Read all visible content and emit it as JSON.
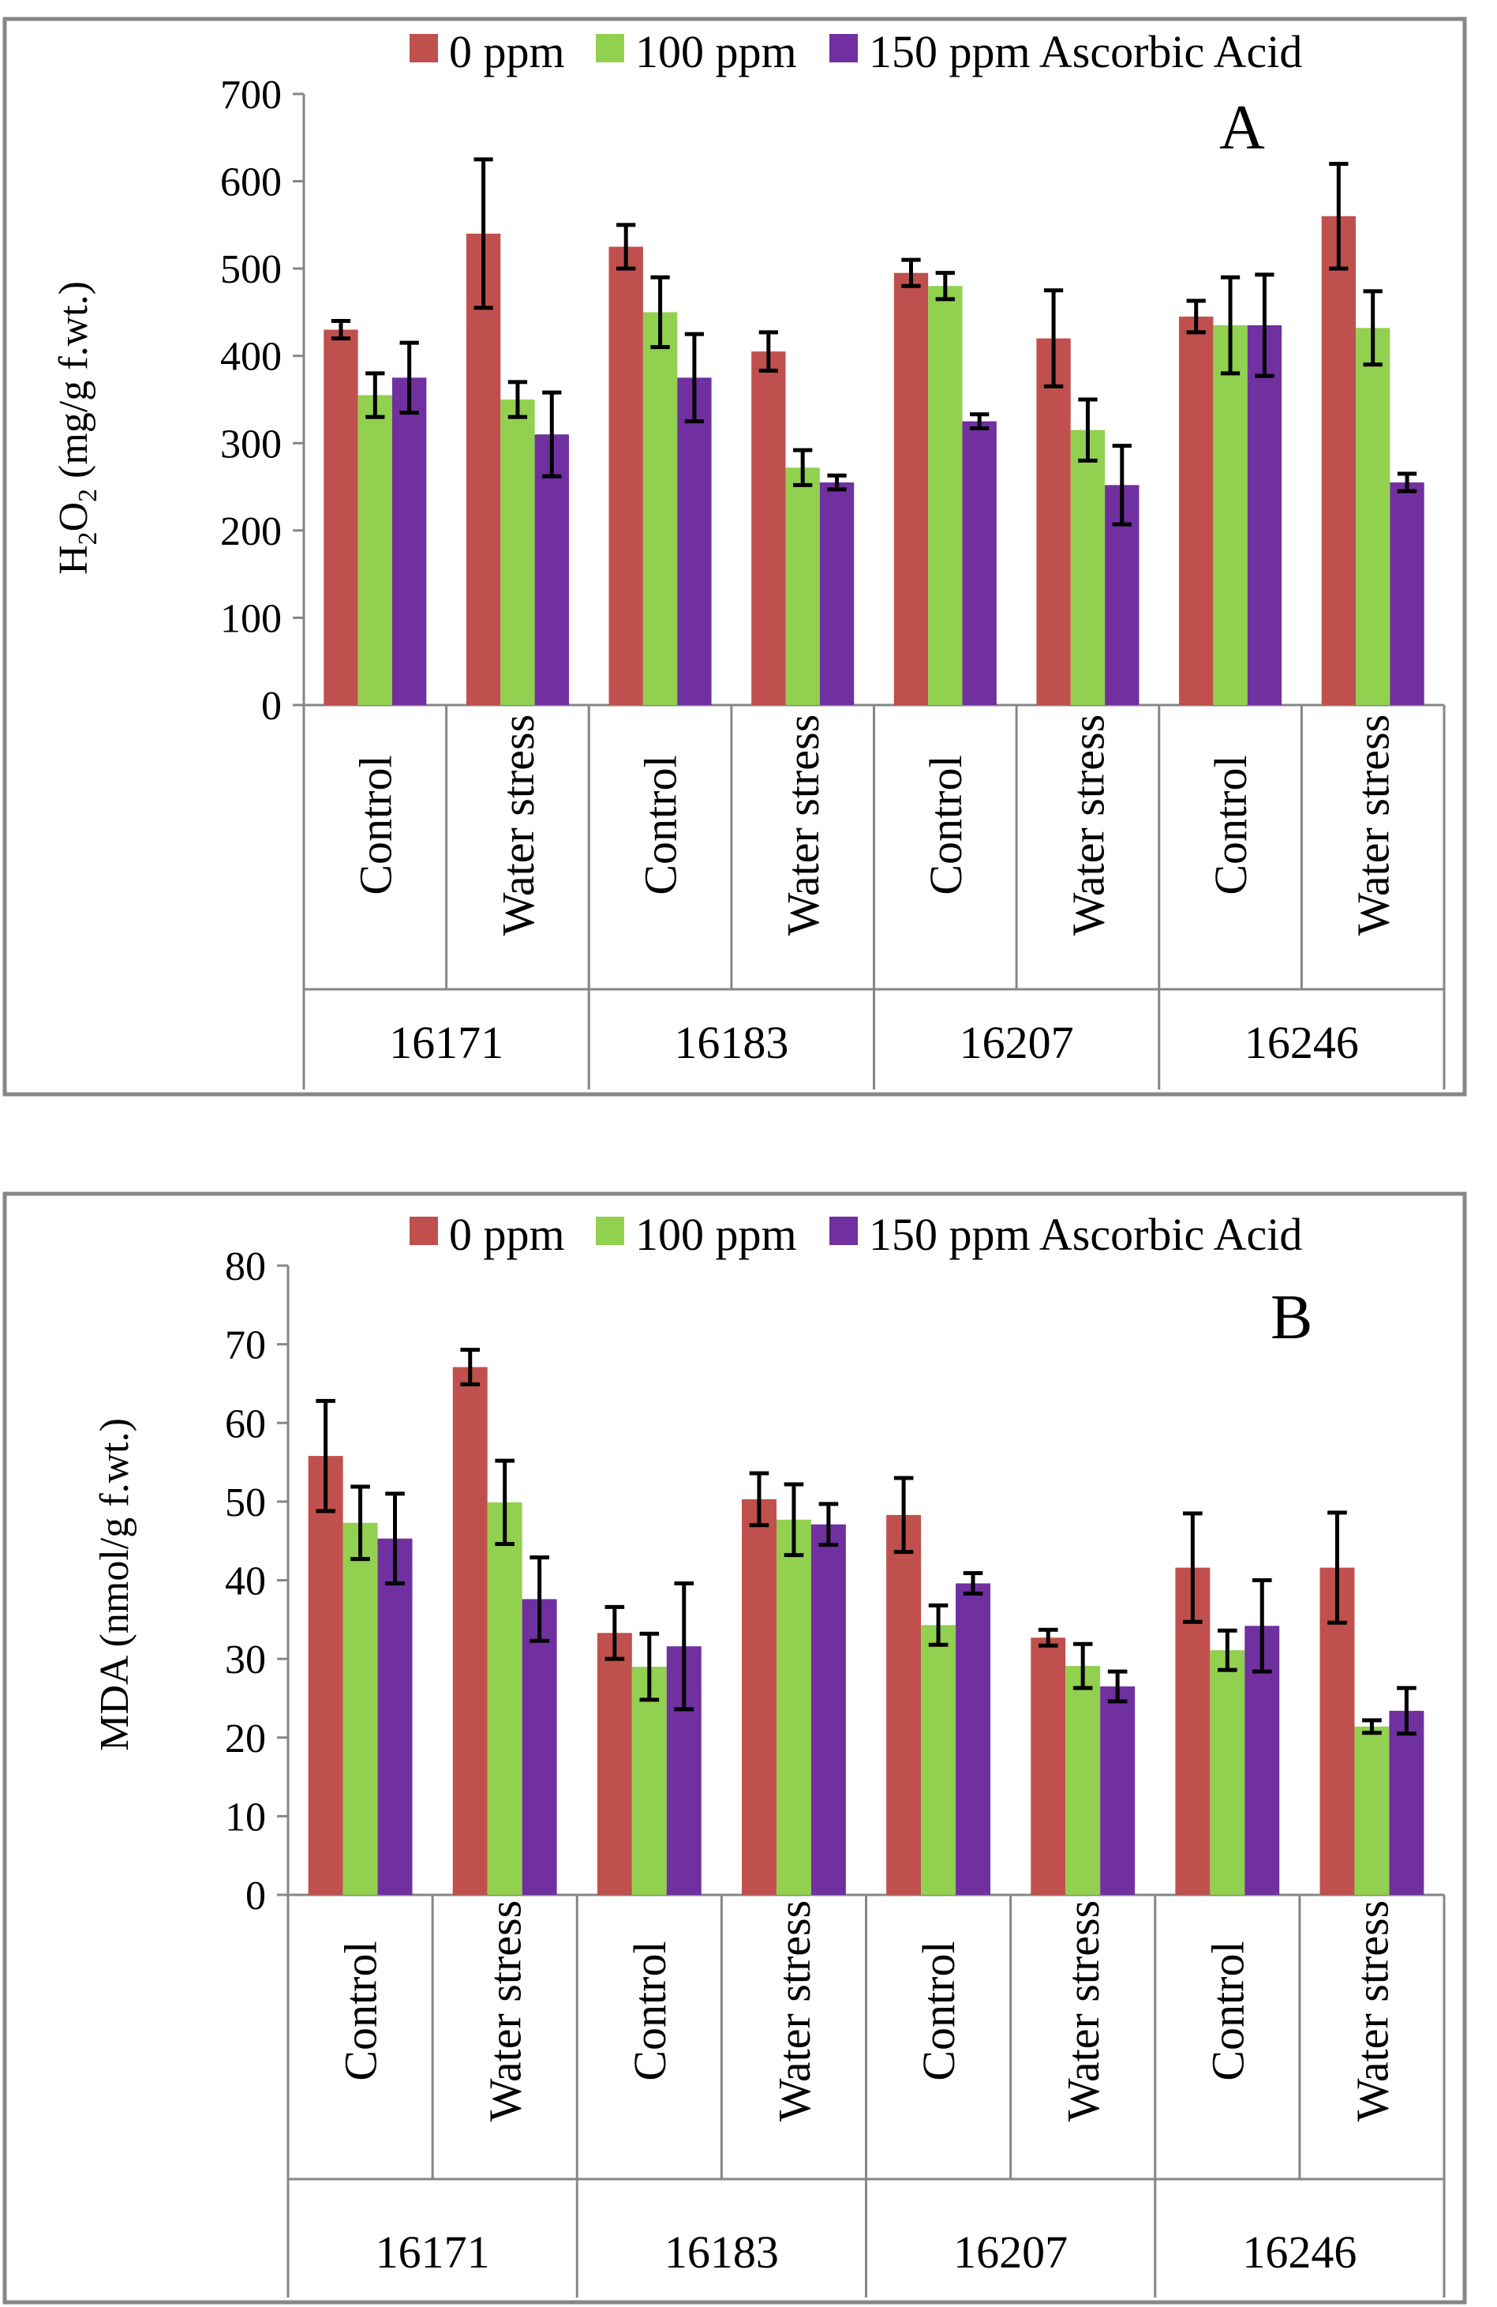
{
  "chart_data": [
    {
      "type": "bar",
      "panel_letter": "A",
      "ylabel_parts": [
        "H",
        "2",
        "O",
        "2",
        " (mg/g f.wt.)"
      ],
      "ylim": [
        0,
        700
      ],
      "yticks": [
        0,
        100,
        200,
        300,
        400,
        500,
        600,
        700
      ],
      "groups": [
        "16171",
        "16183",
        "16207",
        "16246"
      ],
      "subgroups": [
        "Control",
        "Water stress"
      ],
      "categories": [
        "16171 Control",
        "16171 Water stress",
        "16183 Control",
        "16183 Water stress",
        "16207 Control",
        "16207 Water stress",
        "16246 Control",
        "16246 Water stress"
      ],
      "legend_position": "top",
      "series": [
        {
          "name": "0 ppm",
          "color": "#c0504d",
          "values": [
            430,
            540,
            525,
            405,
            495,
            420,
            445,
            560
          ],
          "errors": [
            10,
            85,
            25,
            22,
            15,
            55,
            18,
            60
          ]
        },
        {
          "name": "100 ppm",
          "color": "#92d050",
          "values": [
            355,
            350,
            450,
            272,
            480,
            315,
            435,
            432
          ],
          "errors": [
            25,
            20,
            40,
            20,
            15,
            35,
            55,
            42
          ]
        },
        {
          "name": "150 ppm Ascorbic Acid",
          "color": "#7030a0",
          "values": [
            375,
            310,
            375,
            255,
            325,
            252,
            435,
            255
          ],
          "errors": [
            40,
            48,
            50,
            8,
            8,
            45,
            58,
            10
          ]
        }
      ]
    },
    {
      "type": "bar",
      "panel_letter": "B",
      "ylabel": "MDA (nmol/g f.wt.)",
      "ylim": [
        0,
        80
      ],
      "yticks": [
        0,
        10,
        20,
        30,
        40,
        50,
        60,
        70,
        80
      ],
      "groups": [
        "16171",
        "16183",
        "16207",
        "16246"
      ],
      "subgroups": [
        "Control",
        "Water stress"
      ],
      "categories": [
        "16171 Control",
        "16171 Water stress",
        "16183 Control",
        "16183 Water stress",
        "16207 Control",
        "16207 Water stress",
        "16246 Control",
        "16246 Water stress"
      ],
      "legend_position": "top",
      "series": [
        {
          "name": "0 ppm",
          "color": "#c0504d",
          "values": [
            55.8,
            67.1,
            33.3,
            50.3,
            48.3,
            32.7,
            41.6,
            41.6
          ],
          "errors": [
            7.0,
            2.2,
            3.3,
            3.3,
            4.7,
            1.0,
            6.9,
            7.0
          ]
        },
        {
          "name": "100 ppm",
          "color": "#92d050",
          "values": [
            47.3,
            49.9,
            29.0,
            47.7,
            34.3,
            29.1,
            31.1,
            21.4
          ],
          "errors": [
            4.6,
            5.3,
            4.2,
            4.5,
            2.5,
            2.8,
            2.5,
            0.8
          ]
        },
        {
          "name": "150 ppm Ascorbic Acid",
          "color": "#7030a0",
          "values": [
            45.3,
            37.6,
            31.6,
            47.1,
            39.6,
            26.5,
            34.2,
            23.4
          ],
          "errors": [
            5.7,
            5.3,
            8.0,
            2.6,
            1.3,
            1.9,
            5.8,
            2.9
          ]
        }
      ]
    }
  ]
}
